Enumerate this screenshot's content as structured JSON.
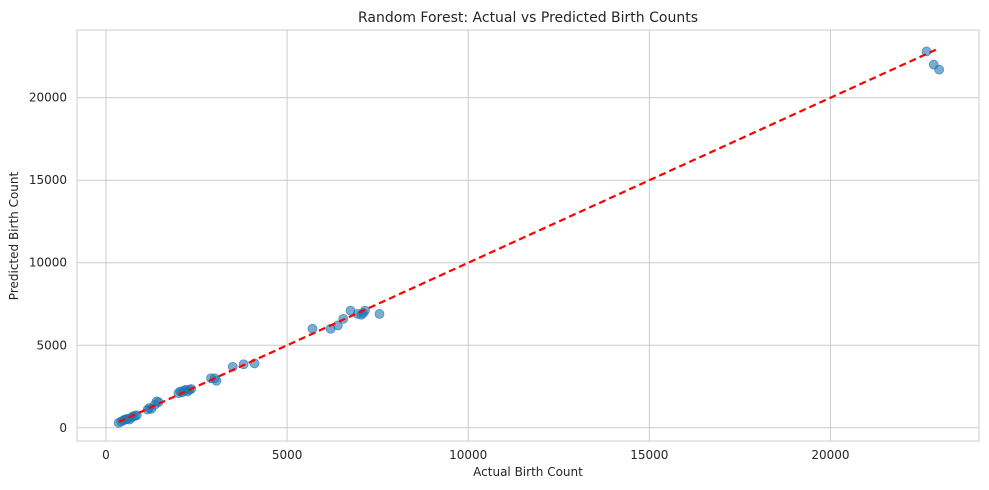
{
  "chart_data": {
    "type": "scatter",
    "title": "Random Forest: Actual vs Predicted Birth Counts",
    "xlabel": "Actual Birth Count",
    "ylabel": "Predicted Birth Count",
    "xlim": [
      -800,
      24100
    ],
    "ylim": [
      -800,
      24100
    ],
    "xticks": [
      0,
      5000,
      10000,
      15000,
      20000
    ],
    "yticks": [
      0,
      5000,
      10000,
      15000,
      20000
    ],
    "grid": true,
    "series": [
      {
        "name": "",
        "color": "#1f77b4",
        "alpha": 0.6,
        "points": [
          [
            350,
            300
          ],
          [
            420,
            380
          ],
          [
            480,
            450
          ],
          [
            520,
            500
          ],
          [
            560,
            520
          ],
          [
            600,
            550
          ],
          [
            650,
            500
          ],
          [
            700,
            620
          ],
          [
            750,
            700
          ],
          [
            800,
            720
          ],
          [
            850,
            760
          ],
          [
            1150,
            1100
          ],
          [
            1200,
            1200
          ],
          [
            1250,
            1150
          ],
          [
            1350,
            1400
          ],
          [
            1400,
            1600
          ],
          [
            1450,
            1550
          ],
          [
            2000,
            2100
          ],
          [
            2050,
            2200
          ],
          [
            2100,
            2150
          ],
          [
            2150,
            2250
          ],
          [
            2200,
            2300
          ],
          [
            2250,
            2200
          ],
          [
            2300,
            2300
          ],
          [
            2350,
            2350
          ],
          [
            2900,
            3000
          ],
          [
            3000,
            3000
          ],
          [
            3050,
            2850
          ],
          [
            3500,
            3700
          ],
          [
            3800,
            3850
          ],
          [
            4100,
            3900
          ],
          [
            5700,
            6000
          ],
          [
            6200,
            6000
          ],
          [
            6400,
            6200
          ],
          [
            6550,
            6600
          ],
          [
            6750,
            7100
          ],
          [
            6950,
            6900
          ],
          [
            7050,
            6850
          ],
          [
            7100,
            6950
          ],
          [
            7150,
            7100
          ],
          [
            7550,
            6900
          ],
          [
            22650,
            22800
          ],
          [
            22850,
            22000
          ],
          [
            23000,
            21700
          ]
        ]
      },
      {
        "name": "",
        "type": "line",
        "style": "dashed",
        "color": "#ff0000",
        "points": [
          [
            350,
            350
          ],
          [
            23000,
            23000
          ]
        ]
      }
    ]
  }
}
